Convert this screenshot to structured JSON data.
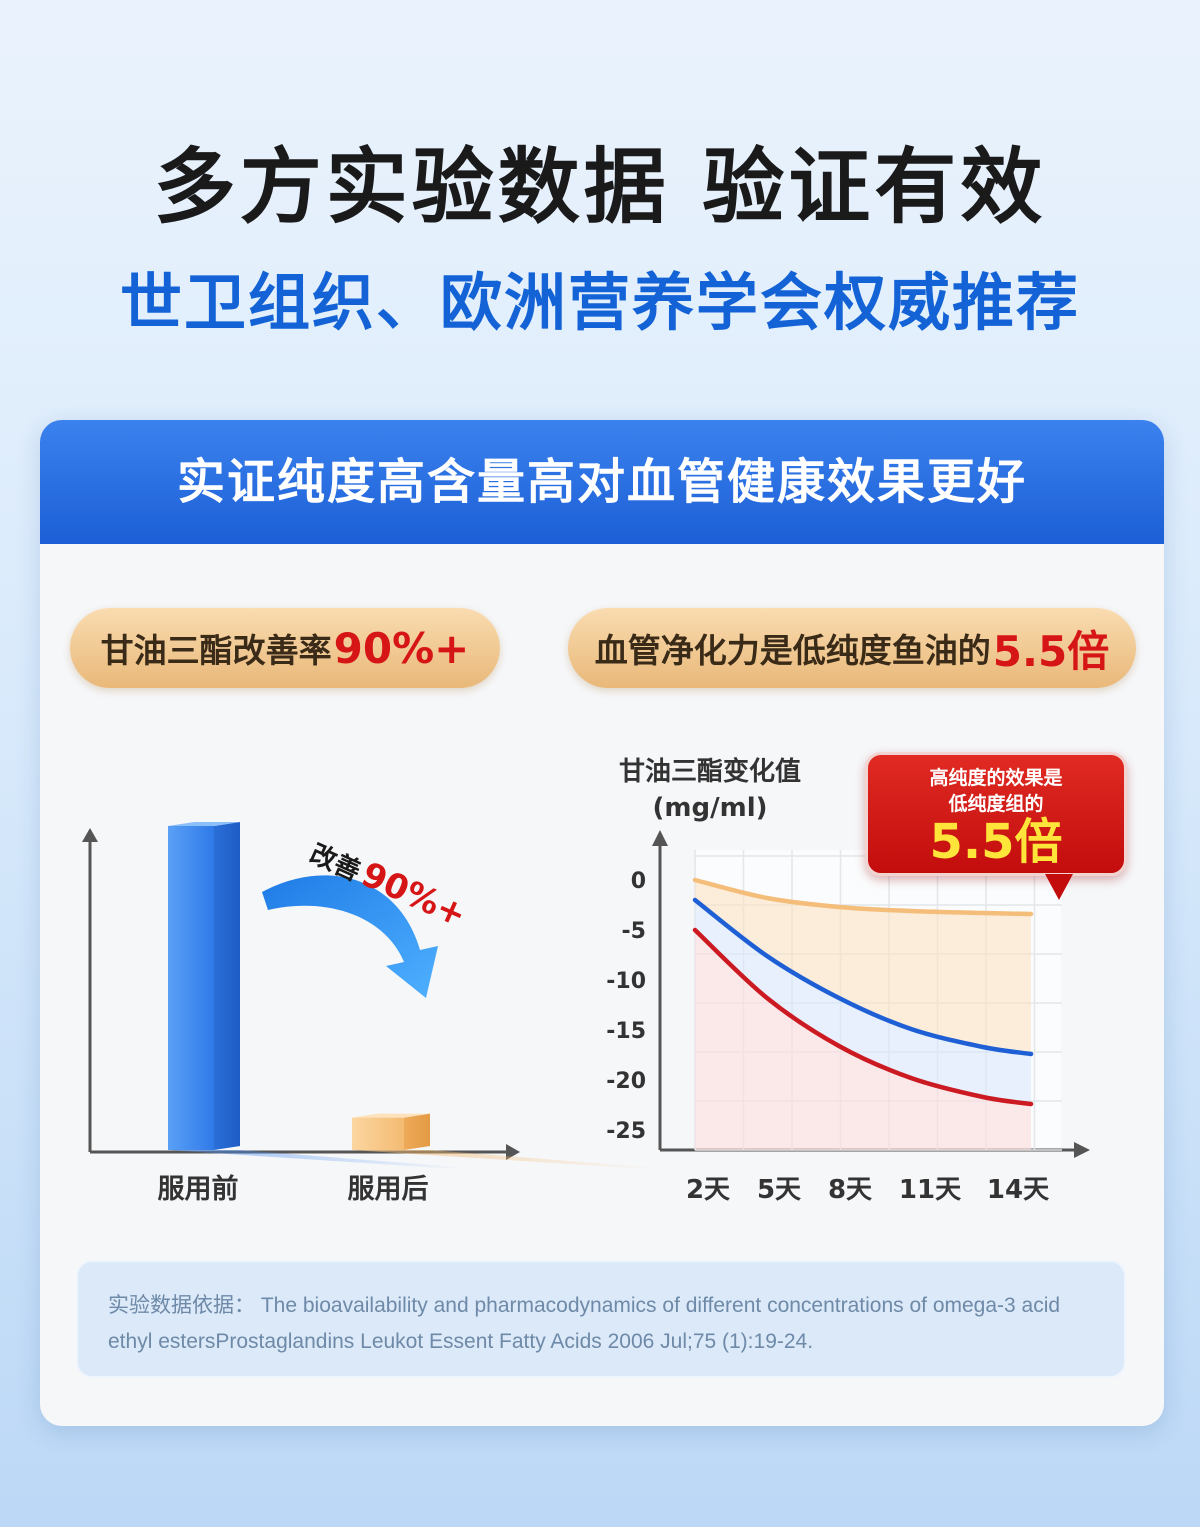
{
  "headline": "多方实验数据 验证有效",
  "subline": "世卫组织、欧洲营养学会权威推荐",
  "card": {
    "title": "实证纯度高含量高对血管健康效果更好",
    "pill_left": {
      "text": "甘油三酯改善率",
      "highlight": "90%+"
    },
    "pill_right": {
      "text": "血管净化力是低纯度鱼油的",
      "highlight": "5.5倍"
    }
  },
  "callout": {
    "line1": "高纯度的效果是",
    "line2": "低纯度组的",
    "value": "5.5倍"
  },
  "reference": {
    "label": "实验数据依据：",
    "text": "The bioavailability and pharmacodynamics of different concentrations of omega-3 acid ethyl estersProstaglandins Leukot Essent Fatty Acids 2006 Jul;75 (1):19-24."
  },
  "colors": {
    "accent_blue": "#1463d6",
    "highlight_red": "#d61616",
    "bar_before": "#3f8df2",
    "bar_after": "#f7c584"
  },
  "chart_data": [
    {
      "type": "bar",
      "categories": [
        "服用前",
        "服用后"
      ],
      "values": [
        100,
        10
      ],
      "annotation": {
        "prefix": "改善",
        "value": "90%+"
      },
      "axes_values_shown": false
    },
    {
      "type": "line",
      "ylabel": "甘油三酯变化值",
      "ylabel_unit": "(mg/ml)",
      "categories": [
        "2天",
        "5天",
        "8天",
        "11天",
        "14天"
      ],
      "yticks": [
        "0",
        "-5",
        "-10",
        "-15",
        "-20",
        "-25"
      ],
      "ylim": [
        -27,
        3
      ],
      "x": [
        0,
        3,
        6,
        9,
        12,
        14
      ],
      "series": [
        {
          "color": "#f4bd7a",
          "values": [
            0,
            -1.8,
            -2.7,
            -3.1,
            -3.3,
            -3.4
          ]
        },
        {
          "color": "#1f5fd6",
          "values": [
            -2,
            -7.6,
            -11.8,
            -14.9,
            -16.7,
            -17.4
          ]
        },
        {
          "color": "#cc1a22",
          "values": [
            -5,
            -11.8,
            -16.6,
            -19.8,
            -21.7,
            -22.4
          ]
        }
      ],
      "grid": true
    }
  ]
}
